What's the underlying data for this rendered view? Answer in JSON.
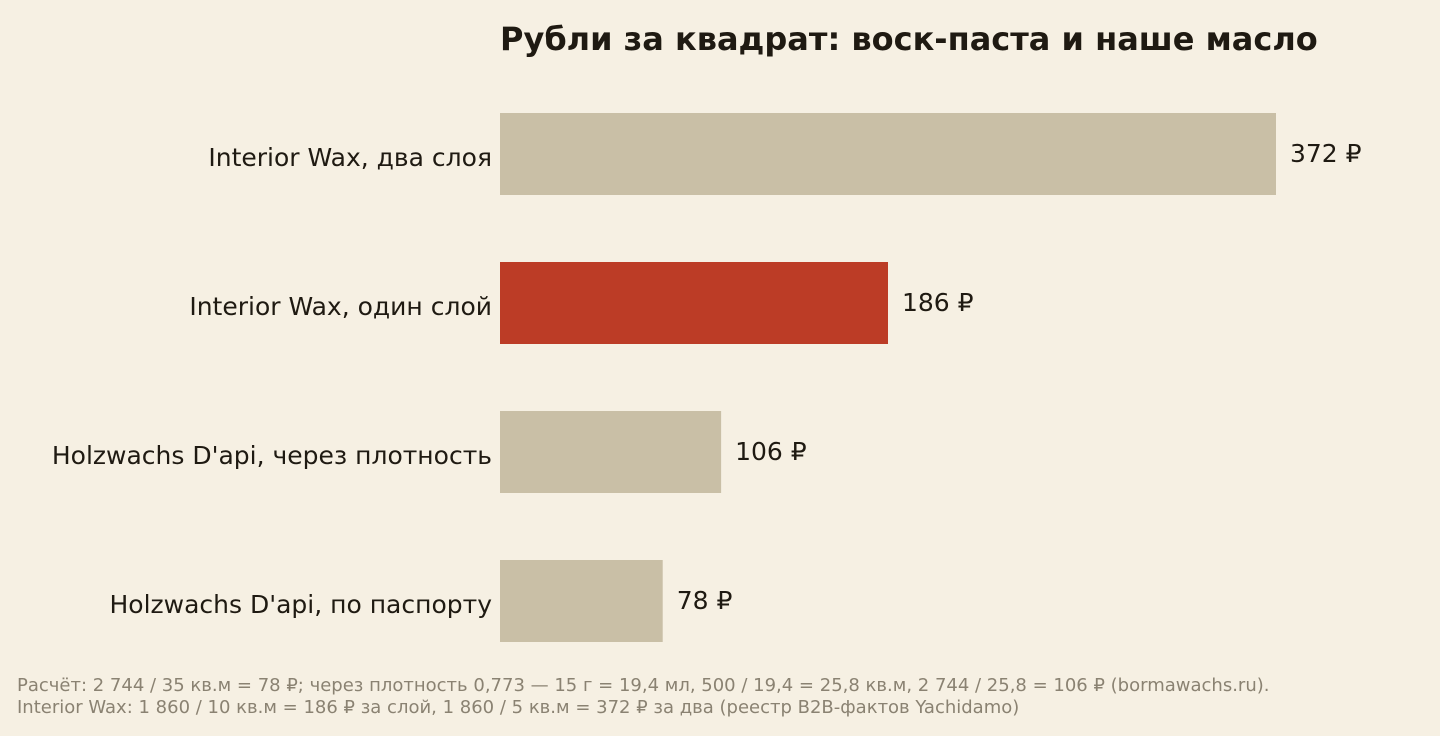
{
  "chart_data": {
    "type": "bar",
    "orientation": "horizontal",
    "title": "Рубли за квадрат: воск-паста и наше масло",
    "categories": [
      "Interior Wax, два слоя",
      "Interior Wax, один слой",
      "Holzwachs D'api, через плотность",
      "Holzwachs D'api, по паспорту"
    ],
    "values": [
      372,
      186,
      106,
      78
    ],
    "value_labels": [
      "372 ₽",
      "186 ₽",
      "106 ₽",
      "78 ₽"
    ],
    "highlight_index": 1,
    "xlim": [
      0,
      372
    ],
    "grid": false,
    "colors": {
      "bar": "#c9bfa6",
      "highlight": "#bc3c26",
      "background": "#f6f0e3",
      "text": "#1f1a12",
      "footnote": "#8a8272"
    }
  },
  "footnote": {
    "line1": "Расчёт: 2 744 / 35 кв.м = 78 ₽; через плотность 0,773 — 15 г = 19,4 мл, 500 / 19,4 = 25,8 кв.м, 2 744 / 25,8 = 106 ₽ (bormawachs.ru).",
    "line2": "Interior Wax: 1 860 / 10 кв.м = 186 ₽ за слой, 1 860 / 5 кв.м = 372 ₽ за два (реестр B2B-фактов Yachidamo)"
  }
}
